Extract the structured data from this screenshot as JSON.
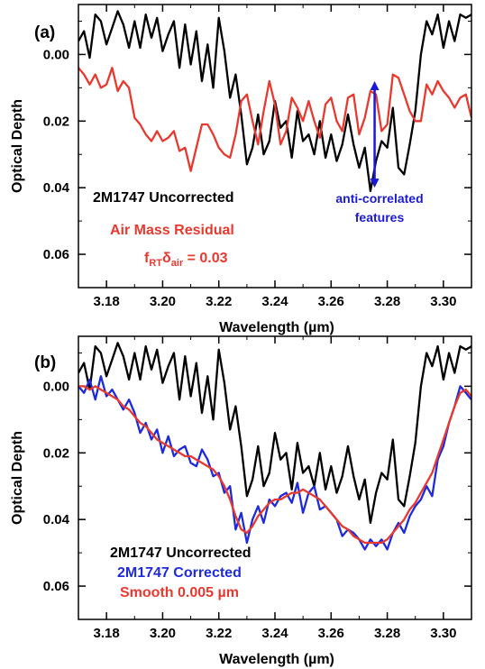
{
  "chart_data": [
    {
      "panel": "(a)",
      "type": "line",
      "xlabel": "Wavelength (µm)",
      "ylabel": "Optical Depth",
      "xlim": [
        3.17,
        3.31
      ],
      "ylim": [
        0.07,
        -0.015
      ],
      "y_inverted": true,
      "x_ticks": [
        "3.18",
        "3.20",
        "3.22",
        "3.24",
        "3.26",
        "3.28",
        "3.30"
      ],
      "y_ticks": [
        "0.00",
        "0.02",
        "0.04",
        "0.06"
      ],
      "series": [
        {
          "name": "2M1747 Uncorrected",
          "color": "#000000",
          "x": [
            3.17,
            3.172,
            3.174,
            3.176,
            3.178,
            3.18,
            3.182,
            3.184,
            3.186,
            3.188,
            3.19,
            3.192,
            3.194,
            3.196,
            3.198,
            3.2,
            3.202,
            3.204,
            3.206,
            3.208,
            3.21,
            3.212,
            3.214,
            3.216,
            3.218,
            3.22,
            3.222,
            3.224,
            3.226,
            3.228,
            3.23,
            3.232,
            3.234,
            3.236,
            3.238,
            3.24,
            3.242,
            3.244,
            3.246,
            3.248,
            3.25,
            3.252,
            3.254,
            3.256,
            3.258,
            3.26,
            3.262,
            3.264,
            3.266,
            3.268,
            3.27,
            3.272,
            3.274,
            3.276,
            3.278,
            3.28,
            3.282,
            3.284,
            3.286,
            3.288,
            3.29,
            3.292,
            3.294,
            3.296,
            3.298,
            3.3,
            3.302,
            3.304,
            3.306,
            3.308,
            3.31
          ],
          "values": [
            -0.004,
            -0.007,
            0.001,
            -0.012,
            -0.01,
            -0.003,
            -0.008,
            -0.013,
            -0.009,
            -0.002,
            -0.01,
            -0.002,
            -0.012,
            -0.005,
            -0.011,
            -0.001,
            -0.006,
            -0.01,
            0.004,
            -0.009,
            0.003,
            -0.007,
            0.008,
            -0.003,
            0.01,
            -0.011,
            -0.001,
            0.013,
            0.006,
            0.018,
            0.033,
            0.028,
            0.018,
            0.03,
            0.026,
            0.014,
            0.022,
            0.02,
            0.031,
            0.017,
            0.026,
            0.024,
            0.03,
            0.02,
            0.031,
            0.024,
            0.032,
            0.027,
            0.018,
            0.027,
            0.034,
            0.028,
            0.041,
            0.032,
            0.026,
            0.028,
            0.016,
            0.034,
            0.036,
            0.027,
            0.017,
            0.0,
            -0.01,
            -0.006,
            -0.012,
            -0.002,
            -0.01,
            -0.004,
            -0.012,
            -0.011,
            -0.012
          ]
        },
        {
          "name": "Air Mass Residual",
          "color": "#e8392f",
          "x": [
            3.17,
            3.172,
            3.174,
            3.176,
            3.178,
            3.18,
            3.182,
            3.184,
            3.186,
            3.188,
            3.19,
            3.192,
            3.194,
            3.196,
            3.198,
            3.2,
            3.202,
            3.204,
            3.206,
            3.208,
            3.21,
            3.212,
            3.214,
            3.216,
            3.218,
            3.22,
            3.222,
            3.224,
            3.226,
            3.228,
            3.23,
            3.232,
            3.234,
            3.236,
            3.238,
            3.24,
            3.242,
            3.244,
            3.246,
            3.248,
            3.25,
            3.252,
            3.254,
            3.256,
            3.258,
            3.26,
            3.262,
            3.264,
            3.266,
            3.268,
            3.27,
            3.272,
            3.274,
            3.276,
            3.278,
            3.28,
            3.282,
            3.284,
            3.286,
            3.288,
            3.29,
            3.292,
            3.294,
            3.296,
            3.298,
            3.3,
            3.302,
            3.304,
            3.306,
            3.308,
            3.31
          ],
          "values": [
            0.004,
            0.006,
            0.009,
            0.006,
            0.01,
            0.009,
            0.004,
            0.011,
            0.008,
            0.01,
            0.019,
            0.021,
            0.024,
            0.026,
            0.023,
            0.026,
            0.025,
            0.023,
            0.029,
            0.028,
            0.035,
            0.028,
            0.021,
            0.021,
            0.024,
            0.028,
            0.03,
            0.031,
            0.024,
            0.014,
            0.012,
            0.02,
            0.027,
            0.017,
            0.008,
            0.015,
            0.027,
            0.023,
            0.013,
            0.016,
            0.02,
            0.014,
            0.02,
            0.025,
            0.015,
            0.013,
            0.02,
            0.023,
            0.013,
            0.012,
            0.024,
            0.019,
            0.011,
            0.012,
            0.023,
            0.021,
            0.006,
            0.007,
            0.012,
            0.017,
            0.02,
            0.02,
            0.009,
            0.012,
            0.008,
            0.011,
            0.013,
            0.016,
            0.013,
            0.012,
            0.019
          ]
        }
      ],
      "legend": [
        {
          "text": "2M1747 Uncorrected",
          "color": "#000000"
        },
        {
          "text": "Air Mass Residual",
          "color": "#e8392f"
        }
      ],
      "annotation_factor": {
        "f": "f",
        "f_sub": "RT",
        "delta": "δ",
        "delta_sub": "air",
        "rest": " = 0.03"
      },
      "annotation_features": {
        "line1": "anti-correlated",
        "line2": "features",
        "color": "#1a1ad6",
        "arrow_x": 3.2755,
        "arrow_y_top": 0.008,
        "arrow_y_bottom": 0.04
      }
    },
    {
      "panel": "(b)",
      "type": "line",
      "xlabel": "Wavelength (µm)",
      "ylabel": "Optical Depth",
      "xlim": [
        3.17,
        3.31
      ],
      "ylim": [
        0.07,
        -0.015
      ],
      "y_inverted": true,
      "x_ticks": [
        "3.18",
        "3.20",
        "3.22",
        "3.24",
        "3.26",
        "3.28",
        "3.30"
      ],
      "y_ticks": [
        "0.00",
        "0.02",
        "0.04",
        "0.06"
      ],
      "series": [
        {
          "name": "2M1747 Uncorrected",
          "color": "#000000",
          "x": [
            3.17,
            3.172,
            3.174,
            3.176,
            3.178,
            3.18,
            3.182,
            3.184,
            3.186,
            3.188,
            3.19,
            3.192,
            3.194,
            3.196,
            3.198,
            3.2,
            3.202,
            3.204,
            3.206,
            3.208,
            3.21,
            3.212,
            3.214,
            3.216,
            3.218,
            3.22,
            3.222,
            3.224,
            3.226,
            3.228,
            3.23,
            3.232,
            3.234,
            3.236,
            3.238,
            3.24,
            3.242,
            3.244,
            3.246,
            3.248,
            3.25,
            3.252,
            3.254,
            3.256,
            3.258,
            3.26,
            3.262,
            3.264,
            3.266,
            3.268,
            3.27,
            3.272,
            3.274,
            3.276,
            3.278,
            3.28,
            3.282,
            3.284,
            3.286,
            3.288,
            3.29,
            3.292,
            3.294,
            3.296,
            3.298,
            3.3,
            3.302,
            3.304,
            3.306,
            3.308,
            3.31
          ],
          "values": [
            -0.004,
            -0.007,
            0.001,
            -0.012,
            -0.01,
            -0.003,
            -0.008,
            -0.013,
            -0.009,
            -0.002,
            -0.01,
            -0.002,
            -0.012,
            -0.005,
            -0.011,
            -0.001,
            -0.006,
            -0.01,
            0.004,
            -0.009,
            0.003,
            -0.007,
            0.008,
            -0.003,
            0.01,
            -0.011,
            -0.001,
            0.013,
            0.006,
            0.018,
            0.033,
            0.028,
            0.018,
            0.03,
            0.026,
            0.014,
            0.022,
            0.02,
            0.031,
            0.017,
            0.026,
            0.024,
            0.03,
            0.02,
            0.031,
            0.024,
            0.032,
            0.027,
            0.018,
            0.027,
            0.034,
            0.028,
            0.041,
            0.032,
            0.026,
            0.028,
            0.016,
            0.034,
            0.036,
            0.027,
            0.017,
            0.0,
            -0.01,
            -0.006,
            -0.012,
            -0.002,
            -0.01,
            -0.004,
            -0.012,
            -0.011,
            -0.012
          ]
        },
        {
          "name": "2M1747 Corrected",
          "color": "#1e2bdc",
          "x": [
            3.17,
            3.172,
            3.174,
            3.176,
            3.178,
            3.18,
            3.182,
            3.184,
            3.186,
            3.188,
            3.19,
            3.192,
            3.194,
            3.196,
            3.198,
            3.2,
            3.202,
            3.204,
            3.206,
            3.208,
            3.21,
            3.212,
            3.214,
            3.216,
            3.218,
            3.22,
            3.222,
            3.224,
            3.226,
            3.228,
            3.23,
            3.232,
            3.234,
            3.236,
            3.238,
            3.24,
            3.242,
            3.244,
            3.246,
            3.248,
            3.25,
            3.252,
            3.254,
            3.256,
            3.258,
            3.26,
            3.262,
            3.264,
            3.266,
            3.268,
            3.27,
            3.272,
            3.274,
            3.276,
            3.278,
            3.28,
            3.282,
            3.284,
            3.286,
            3.288,
            3.29,
            3.292,
            3.294,
            3.296,
            3.298,
            3.3,
            3.302,
            3.304,
            3.306,
            3.308,
            3.31
          ],
          "values": [
            0.0,
            0.002,
            -0.002,
            0.004,
            -0.003,
            0.003,
            0.001,
            0.004,
            0.007,
            0.004,
            0.008,
            0.014,
            0.011,
            0.016,
            0.013,
            0.02,
            0.015,
            0.021,
            0.019,
            0.018,
            0.023,
            0.024,
            0.019,
            0.022,
            0.027,
            0.026,
            0.032,
            0.03,
            0.043,
            0.038,
            0.047,
            0.04,
            0.036,
            0.041,
            0.034,
            0.036,
            0.033,
            0.032,
            0.035,
            0.029,
            0.038,
            0.032,
            0.03,
            0.037,
            0.036,
            0.038,
            0.04,
            0.045,
            0.043,
            0.044,
            0.046,
            0.049,
            0.046,
            0.048,
            0.046,
            0.049,
            0.044,
            0.041,
            0.044,
            0.039,
            0.036,
            0.034,
            0.03,
            0.033,
            0.022,
            0.018,
            0.011,
            0.006,
            0.0,
            0.002,
            0.004
          ]
        },
        {
          "name": "Smooth 0.005 µm",
          "color": "#e8392f",
          "x": [
            3.17,
            3.172,
            3.174,
            3.176,
            3.178,
            3.18,
            3.182,
            3.184,
            3.186,
            3.188,
            3.19,
            3.192,
            3.194,
            3.196,
            3.198,
            3.2,
            3.202,
            3.204,
            3.206,
            3.208,
            3.21,
            3.212,
            3.214,
            3.216,
            3.218,
            3.22,
            3.222,
            3.224,
            3.226,
            3.228,
            3.23,
            3.232,
            3.234,
            3.236,
            3.238,
            3.24,
            3.242,
            3.244,
            3.246,
            3.248,
            3.25,
            3.252,
            3.254,
            3.256,
            3.258,
            3.26,
            3.262,
            3.264,
            3.266,
            3.268,
            3.27,
            3.272,
            3.274,
            3.276,
            3.278,
            3.28,
            3.282,
            3.284,
            3.286,
            3.288,
            3.29,
            3.292,
            3.294,
            3.296,
            3.298,
            3.3,
            3.302,
            3.304,
            3.306,
            3.308,
            3.31
          ],
          "values": [
            0.0,
            0.0,
            0.001,
            0.0,
            0.001,
            0.002,
            0.003,
            0.004,
            0.006,
            0.007,
            0.009,
            0.011,
            0.012,
            0.014,
            0.016,
            0.017,
            0.018,
            0.019,
            0.02,
            0.021,
            0.021,
            0.022,
            0.023,
            0.024,
            0.025,
            0.027,
            0.03,
            0.034,
            0.039,
            0.043,
            0.044,
            0.042,
            0.039,
            0.037,
            0.035,
            0.034,
            0.034,
            0.033,
            0.032,
            0.032,
            0.031,
            0.032,
            0.033,
            0.034,
            0.036,
            0.038,
            0.04,
            0.042,
            0.043,
            0.045,
            0.046,
            0.047,
            0.047,
            0.047,
            0.047,
            0.046,
            0.044,
            0.042,
            0.04,
            0.037,
            0.035,
            0.032,
            0.029,
            0.026,
            0.021,
            0.016,
            0.011,
            0.006,
            0.002,
            0.001,
            0.003
          ]
        }
      ],
      "legend": [
        {
          "text": "2M1747 Uncorrected",
          "color": "#000000"
        },
        {
          "text": "2M1747 Corrected",
          "color": "#1e2bdc"
        },
        {
          "text": "Smooth 0.005 µm",
          "color": "#e8392f"
        }
      ]
    }
  ]
}
